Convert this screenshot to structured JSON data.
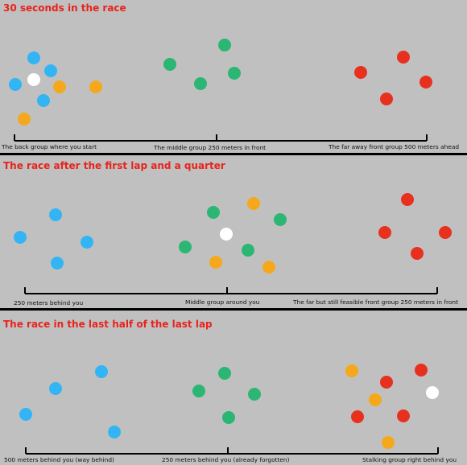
{
  "palette": {
    "background": "#c0c0c0",
    "title": "#e8231c",
    "blue": "#33b4f4",
    "green": "#2bb673",
    "orange": "#f6a81c",
    "red": "#e8301f",
    "white": "#ffffff"
  },
  "panels": [
    {
      "title": "30 seconds in the race",
      "labels": [
        "The back group where you start",
        "The middle group 250 meters in front",
        "The far away front group 500 meters ahead"
      ]
    },
    {
      "title": "The race after the first lap and a quarter",
      "labels": [
        "250 meters behind you",
        "Middle group around you",
        "The far but still feasible front group 250 meters in front"
      ]
    },
    {
      "title": "The race in the last half of the last lap",
      "labels": [
        "500 meters behind you (way behind)",
        "250 meters behind you (already forgotten)",
        "Stalking group right behind you"
      ]
    }
  ]
}
